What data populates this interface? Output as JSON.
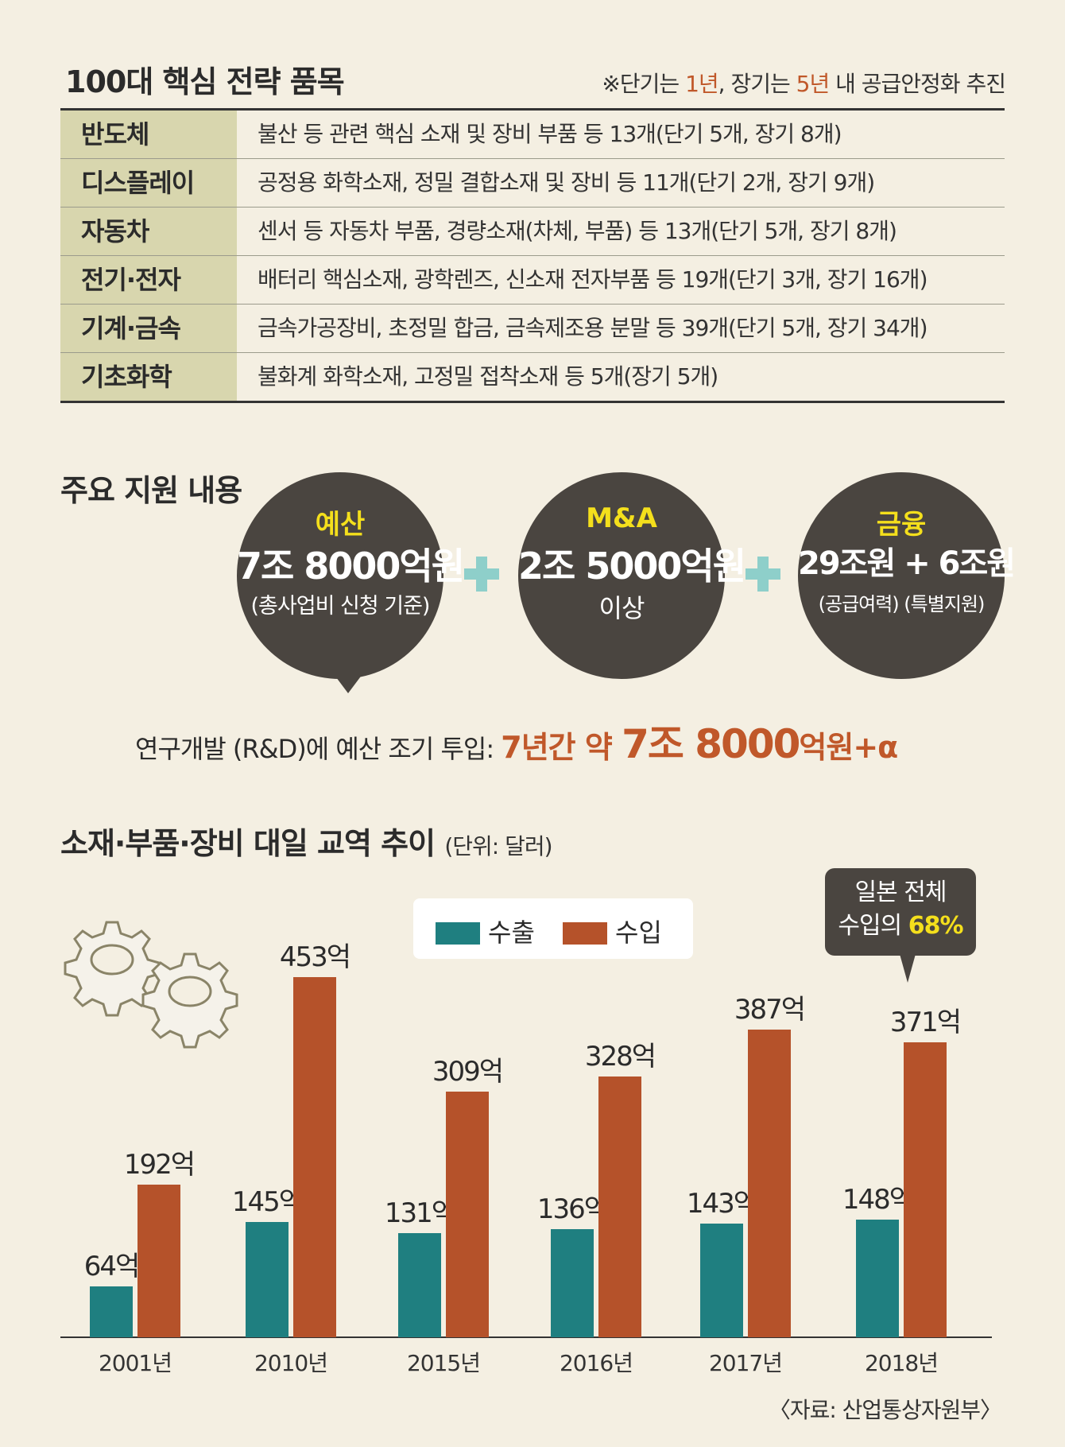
{
  "top": {
    "title": "100대 핵심 전략 품목",
    "note_parts": [
      "※단기는 ",
      "1년",
      ", 장기는 ",
      "5년",
      " 내 공급안정화 추진"
    ]
  },
  "table": {
    "rows": [
      {
        "category": "반도체",
        "desc": "불산 등 관련 핵심 소재 및 장비 부품 등 13개(단기 5개, 장기 8개)"
      },
      {
        "category": "디스플레이",
        "desc": "공정용 화학소재, 정밀 결합소재 및 장비 등 11개(단기 2개, 장기 9개)"
      },
      {
        "category": "자동차",
        "desc": "센서 등 자동차 부품, 경량소재(차체, 부품) 등 13개(단기 5개, 장기 8개)"
      },
      {
        "category": "전기·전자",
        "desc": "배터리 핵심소재, 광학렌즈, 신소재 전자부품 등 19개(단기 3개, 장기 16개)"
      },
      {
        "category": "기계·금속",
        "desc": "금속가공장비, 초정밀 합금, 금속제조용 분말 등 39개(단기 5개, 장기 34개)"
      },
      {
        "category": "기초화학",
        "desc": "불화계 화학소재, 고정밀 접착소재 등 5개(장기 5개)"
      }
    ]
  },
  "support": {
    "title": "주요 지원 내용",
    "circles": [
      {
        "label": "예산",
        "amount": "7조 8000억원",
        "sub": "(총사업비 신청 기준)"
      },
      {
        "label": "M&A",
        "amount": "2조 5000억원",
        "sub": "이상"
      },
      {
        "label": "금융",
        "amount": "29조원 + 6조원",
        "sub": "(공급여력) (특별지원)"
      }
    ],
    "rd_prefix": "연구개발 (R&D)에 예산 조기 투입: ",
    "rd_period": "7년간 약 ",
    "rd_big": "7조 8000",
    "rd_suffix": "억원+α"
  },
  "chart_section": {
    "title": "소재·부품·장비 대일 교역 추이",
    "unit": "(단위: 달러)",
    "callout_line1": "일본 전체",
    "callout_line2_prefix": "수입의 ",
    "callout_line2_value": "68%",
    "source": "〈자료: 산업통상자원부〉"
  },
  "chart_data": {
    "type": "bar",
    "categories": [
      "2001년",
      "2010년",
      "2015년",
      "2016년",
      "2017년",
      "2018년"
    ],
    "series": [
      {
        "name": "수출",
        "color": "#1f7f80",
        "values": [
          64,
          145,
          131,
          136,
          143,
          148
        ],
        "labels": [
          "64억",
          "145억",
          "131억",
          "136억",
          "143억",
          "148억"
        ]
      },
      {
        "name": "수입",
        "color": "#b5522a",
        "values": [
          192,
          453,
          309,
          328,
          387,
          371
        ],
        "labels": [
          "192억",
          "453억",
          "309억",
          "328억",
          "387억",
          "371억"
        ]
      }
    ],
    "title": "소재·부품·장비 대일 교역 추이",
    "unit": "(단위: 달러)",
    "ylim": [
      0,
      500
    ],
    "grid": false,
    "legend": "top-center"
  }
}
